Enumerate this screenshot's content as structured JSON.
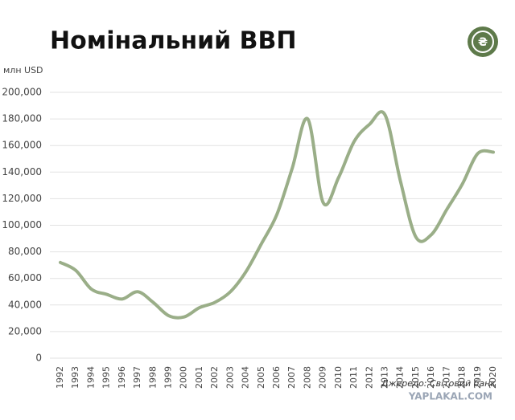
{
  "chart_data": {
    "type": "line",
    "title": "Номінальний ВВП",
    "y_label": "млн USD",
    "source": "Джерело: Світовий банк",
    "watermark": "YAPLAKAL.COM",
    "categories": [
      "1992",
      "1993",
      "1994",
      "1995",
      "1996",
      "1997",
      "1998",
      "1999",
      "2000",
      "2001",
      "2002",
      "2003",
      "2004",
      "2005",
      "2006",
      "2007",
      "2008",
      "2009",
      "2010",
      "2011",
      "2012",
      "2013",
      "2014",
      "2015",
      "2016",
      "2017",
      "2018",
      "2019",
      "2020"
    ],
    "series": [
      {
        "name": "ВВП",
        "color": "#9aae88",
        "values": [
          72000,
          66000,
          52000,
          48000,
          44500,
          50000,
          42000,
          32000,
          31000,
          38000,
          42000,
          50000,
          65000,
          86000,
          108000,
          143000,
          180000,
          117000,
          136000,
          163000,
          176000,
          183000,
          133000,
          91000,
          93000,
          112000,
          131000,
          154000,
          155000
        ]
      }
    ],
    "ylim": [
      0,
      200000
    ],
    "yticks": [
      0,
      {
        "value": 20000,
        "label": "20,000"
      },
      {
        "value": 40000,
        "label": "40,000"
      },
      {
        "value": 60000,
        "label": "60,000"
      },
      {
        "value": 80000,
        "label": "80,000"
      },
      {
        "value": 100000,
        "label": "100,000"
      },
      {
        "value": 120000,
        "label": "120,000"
      },
      {
        "value": 140000,
        "label": "140,000"
      },
      {
        "value": 160000,
        "label": "160,000"
      },
      {
        "value": 180000,
        "label": "180,000"
      },
      {
        "value": 200000,
        "label": "200,000"
      }
    ],
    "grid": true
  }
}
